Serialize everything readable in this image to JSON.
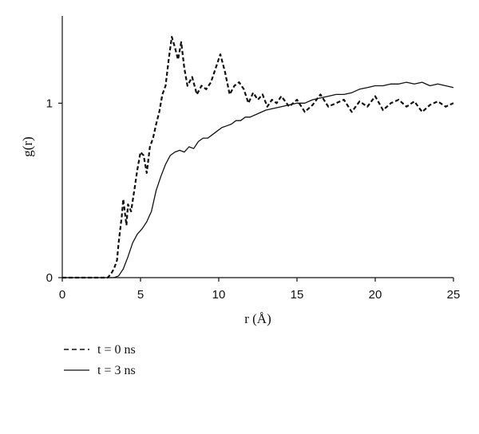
{
  "chart_data": {
    "type": "line",
    "title": "",
    "xlabel": "r (Å)",
    "ylabel": "g(r)",
    "xlim": [
      0,
      25
    ],
    "ylim": [
      0,
      1.5
    ],
    "xticks": [
      0,
      5,
      10,
      15,
      20,
      25
    ],
    "yticks": [
      0,
      1
    ],
    "grid": false,
    "legend_position": "bottom-left",
    "series": [
      {
        "name": "t = 0 ns",
        "style": "dashed",
        "color": "#111111",
        "x": [
          0,
          2.9,
          3.1,
          3.3,
          3.5,
          3.6,
          3.8,
          3.9,
          4.1,
          4.2,
          4.4,
          4.6,
          4.8,
          5.0,
          5.2,
          5.4,
          5.6,
          5.8,
          6.0,
          6.2,
          6.4,
          6.6,
          6.8,
          7.0,
          7.2,
          7.4,
          7.6,
          7.8,
          8.0,
          8.3,
          8.6,
          8.9,
          9.2,
          9.5,
          9.8,
          10.1,
          10.4,
          10.7,
          11.0,
          11.3,
          11.6,
          11.9,
          12.2,
          12.5,
          12.8,
          13.1,
          13.4,
          13.7,
          14.0,
          14.5,
          15.0,
          15.5,
          16.0,
          16.5,
          17.0,
          17.5,
          18.0,
          18.5,
          19.0,
          19.5,
          20.0,
          20.5,
          21.0,
          21.5,
          22.0,
          22.5,
          23.0,
          23.5,
          24.0,
          24.5,
          25.0
        ],
        "y": [
          0.0,
          0.0,
          0.02,
          0.05,
          0.1,
          0.2,
          0.35,
          0.45,
          0.3,
          0.42,
          0.38,
          0.5,
          0.62,
          0.72,
          0.7,
          0.6,
          0.75,
          0.8,
          0.88,
          0.95,
          1.05,
          1.1,
          1.25,
          1.38,
          1.32,
          1.25,
          1.35,
          1.2,
          1.1,
          1.15,
          1.05,
          1.1,
          1.08,
          1.12,
          1.2,
          1.28,
          1.18,
          1.05,
          1.1,
          1.12,
          1.08,
          1.0,
          1.06,
          1.02,
          1.05,
          0.98,
          1.02,
          1.0,
          1.04,
          0.98,
          1.02,
          0.95,
          0.99,
          1.05,
          0.98,
          1.0,
          1.02,
          0.95,
          1.01,
          0.98,
          1.04,
          0.96,
          1.0,
          1.02,
          0.98,
          1.01,
          0.95,
          0.99,
          1.01,
          0.98,
          1.0
        ]
      },
      {
        "name": "t = 3 ns",
        "style": "solid",
        "color": "#111111",
        "x": [
          0,
          3.0,
          3.3,
          3.6,
          3.9,
          4.2,
          4.5,
          4.8,
          5.1,
          5.4,
          5.7,
          6.0,
          6.3,
          6.6,
          6.9,
          7.2,
          7.5,
          7.8,
          8.1,
          8.4,
          8.7,
          9.0,
          9.3,
          9.6,
          9.9,
          10.2,
          10.5,
          10.8,
          11.1,
          11.4,
          11.7,
          12.0,
          12.5,
          13.0,
          13.5,
          14.0,
          14.5,
          15.0,
          15.5,
          16.0,
          16.5,
          17.0,
          17.5,
          18.0,
          18.5,
          19.0,
          19.5,
          20.0,
          20.5,
          21.0,
          21.5,
          22.0,
          22.5,
          23.0,
          23.5,
          24.0,
          24.5,
          25.0
        ],
        "y": [
          0.0,
          0.0,
          0.0,
          0.01,
          0.05,
          0.12,
          0.2,
          0.25,
          0.28,
          0.32,
          0.38,
          0.5,
          0.58,
          0.65,
          0.7,
          0.72,
          0.73,
          0.72,
          0.75,
          0.74,
          0.78,
          0.8,
          0.8,
          0.82,
          0.84,
          0.86,
          0.87,
          0.88,
          0.9,
          0.9,
          0.92,
          0.92,
          0.94,
          0.96,
          0.97,
          0.98,
          0.99,
          1.0,
          1.0,
          1.02,
          1.03,
          1.04,
          1.05,
          1.05,
          1.06,
          1.08,
          1.09,
          1.1,
          1.1,
          1.11,
          1.11,
          1.12,
          1.11,
          1.12,
          1.1,
          1.11,
          1.1,
          1.09
        ]
      }
    ]
  }
}
